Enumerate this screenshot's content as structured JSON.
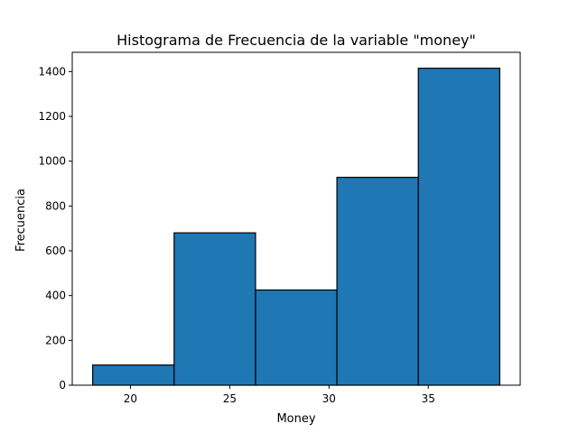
{
  "chart_data": {
    "type": "bar",
    "title": "Histograma de Frecuencia de la variable \"money\"",
    "xlabel": "Money",
    "ylabel": "Frecuencia",
    "bins": [
      {
        "x0": 18.1,
        "x1": 22.2,
        "value": 90
      },
      {
        "x0": 22.2,
        "x1": 26.3,
        "value": 680
      },
      {
        "x0": 26.3,
        "x1": 30.4,
        "value": 425
      },
      {
        "x0": 30.4,
        "x1": 34.5,
        "value": 928
      },
      {
        "x0": 34.5,
        "x1": 38.6,
        "value": 1415
      }
    ],
    "xlim": [
      17.07,
      39.63
    ],
    "ylim": [
      0,
      1486
    ],
    "xticks": [
      20,
      25,
      30,
      35
    ],
    "yticks": [
      0,
      200,
      400,
      600,
      800,
      1000,
      1200,
      1400
    ],
    "grid": false,
    "bar_color": "#1f77b4",
    "edge_color": "#000000"
  }
}
